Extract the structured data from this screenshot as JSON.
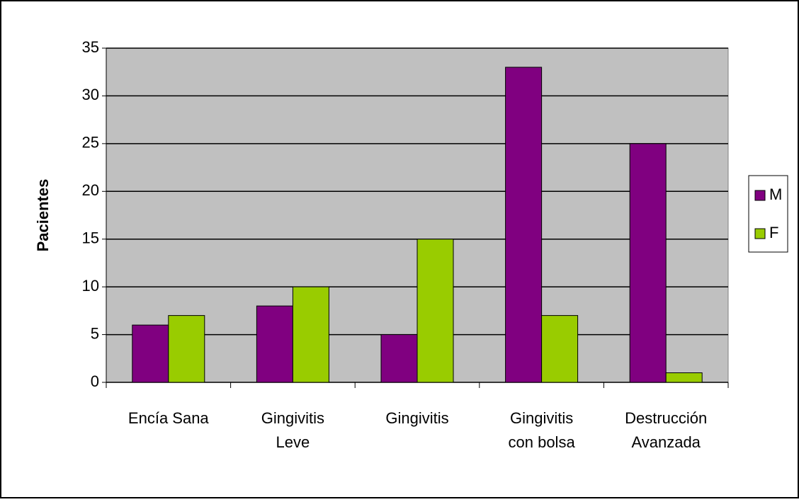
{
  "chart_data": {
    "type": "bar",
    "y_label": "Pacientes",
    "categories": [
      "Encía Sana",
      "Gingivitis\nLeve",
      "Gingivitis",
      "Gingivitis\ncon bolsa",
      "Destrucción\nAvanzada"
    ],
    "series": [
      {
        "name": "M",
        "color": "#800080",
        "values": [
          6,
          8,
          5,
          33,
          25
        ]
      },
      {
        "name": "F",
        "color": "#99cc00",
        "values": [
          7,
          10,
          15,
          7,
          1
        ]
      }
    ],
    "ylim": [
      0,
      35
    ],
    "yticks": [
      0,
      5,
      10,
      15,
      20,
      25,
      30,
      35
    ],
    "grid": true,
    "legend": "right"
  }
}
